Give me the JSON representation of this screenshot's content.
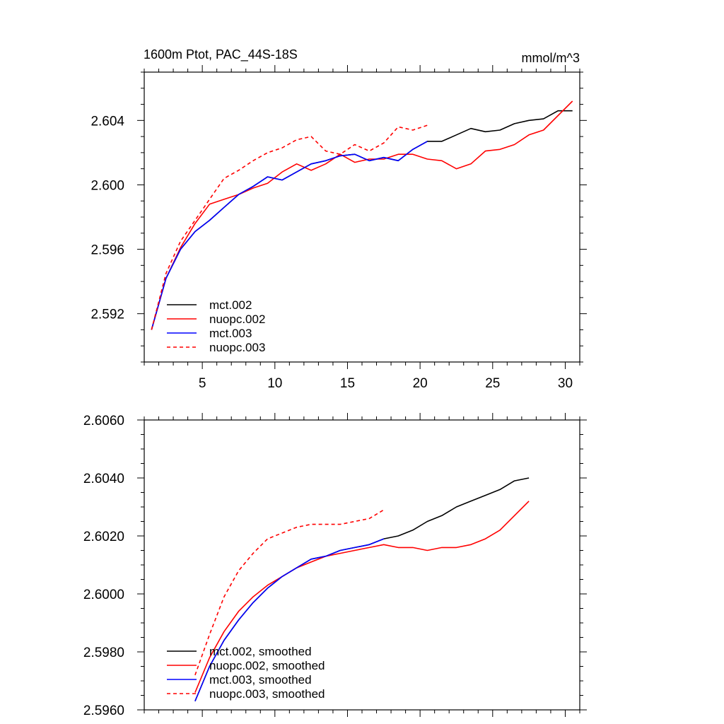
{
  "chart_data": [
    {
      "type": "line",
      "title": "1600m Ptot, PAC_44S-18S",
      "units": "mmol/m^3",
      "xlim": [
        1,
        31
      ],
      "ylim": [
        2.589,
        2.607
      ],
      "xticks": [
        5,
        10,
        15,
        20,
        25,
        30
      ],
      "xtick_labels": [
        "5",
        "10",
        "15",
        "20",
        "25",
        "30"
      ],
      "yticks": [
        2.592,
        2.596,
        2.6,
        2.604
      ],
      "ytick_labels": [
        "2.592",
        "2.596",
        "2.600",
        "2.604"
      ],
      "legend_position": "bottom-left",
      "series": [
        {
          "name": "mct.002",
          "color": "#000000",
          "dash": "solid",
          "x": [
            1.5,
            2.5,
            3.5,
            4.5,
            5.5,
            6.5,
            7.5,
            8.5,
            9.5,
            10.5,
            11.5,
            12.5,
            13.5,
            14.5,
            15.5,
            16.5,
            17.5,
            18.5,
            19.5,
            20.5,
            21.5,
            22.5,
            23.5,
            24.5,
            25.5,
            26.5,
            27.5,
            28.5,
            29.5,
            30.5
          ],
          "y": [
            2.591,
            2.5942,
            2.596,
            2.5971,
            2.5978,
            2.5986,
            2.5994,
            2.5999,
            2.6005,
            2.6003,
            2.6008,
            2.6013,
            2.6015,
            2.6018,
            2.6019,
            2.6015,
            2.6017,
            2.6015,
            2.6022,
            2.6027,
            2.6027,
            2.6031,
            2.6035,
            2.6033,
            2.6034,
            2.6038,
            2.604,
            2.6041,
            2.6046,
            2.6046
          ]
        },
        {
          "name": "nuopc.002",
          "color": "#ff0000",
          "dash": "solid",
          "x": [
            1.5,
            2.5,
            3.5,
            4.5,
            5.5,
            6.5,
            7.5,
            8.5,
            9.5,
            10.5,
            11.5,
            12.5,
            13.5,
            14.5,
            15.5,
            16.5,
            17.5,
            18.5,
            19.5,
            20.5,
            21.5,
            22.5,
            23.5,
            24.5,
            25.5,
            26.5,
            27.5,
            28.5,
            29.5,
            30.5
          ],
          "y": [
            2.591,
            2.5942,
            2.5961,
            2.5976,
            2.5988,
            2.5991,
            2.5994,
            2.5998,
            2.6001,
            2.6008,
            2.6013,
            2.6009,
            2.6013,
            2.6019,
            2.6014,
            2.6016,
            2.6016,
            2.6019,
            2.6019,
            2.6016,
            2.6015,
            2.601,
            2.6013,
            2.6021,
            2.6022,
            2.6025,
            2.6031,
            2.6034,
            2.6043,
            2.6052
          ]
        },
        {
          "name": "mct.003",
          "color": "#0000ff",
          "dash": "solid",
          "x": [
            1.5,
            2.5,
            3.5,
            4.5,
            5.5,
            6.5,
            7.5,
            8.5,
            9.5,
            10.5,
            11.5,
            12.5,
            13.5,
            14.5,
            15.5,
            16.5,
            17.5,
            18.5,
            19.5,
            20.5
          ],
          "y": [
            2.591,
            2.5942,
            2.596,
            2.5971,
            2.5978,
            2.5986,
            2.5994,
            2.5999,
            2.6005,
            2.6003,
            2.6008,
            2.6013,
            2.6015,
            2.6018,
            2.6019,
            2.6015,
            2.6017,
            2.6015,
            2.6022,
            2.6027
          ]
        },
        {
          "name": "nuopc.003",
          "color": "#ff0000",
          "dash": "dashed",
          "x": [
            1.5,
            2.5,
            3.5,
            4.5,
            5.5,
            6.5,
            7.5,
            8.5,
            9.5,
            10.5,
            11.5,
            12.5,
            13.5,
            14.5,
            15.5,
            16.5,
            17.5,
            18.5,
            19.5,
            20.5
          ],
          "y": [
            2.591,
            2.5945,
            2.5965,
            2.5978,
            2.5991,
            2.6004,
            2.6009,
            2.6015,
            2.602,
            2.6023,
            2.6028,
            2.603,
            2.6021,
            2.6019,
            2.6025,
            2.6021,
            2.6026,
            2.6036,
            2.6034,
            2.6037
          ]
        }
      ]
    },
    {
      "type": "line",
      "title": "",
      "xlim": [
        1,
        31
      ],
      "ylim": [
        2.596,
        2.606
      ],
      "xticks": [
        5,
        10,
        15,
        20,
        25,
        30
      ],
      "xtick_labels": [],
      "yticks": [
        2.596,
        2.598,
        2.6,
        2.602,
        2.604,
        2.606
      ],
      "ytick_labels": [
        "2.5960",
        "2.5980",
        "2.6000",
        "2.6020",
        "2.6040",
        "2.6060"
      ],
      "legend_position": "bottom-left",
      "series": [
        {
          "name": "mct.002, smoothed",
          "color": "#000000",
          "dash": "solid",
          "x": [
            4.5,
            5.5,
            6.5,
            7.5,
            8.5,
            9.5,
            10.5,
            11.5,
            12.5,
            13.5,
            14.5,
            15.5,
            16.5,
            17.5,
            18.5,
            19.5,
            20.5,
            21.5,
            22.5,
            23.5,
            24.5,
            25.5,
            26.5,
            27.5
          ],
          "y": [
            2.5963,
            2.5975,
            2.5984,
            2.5991,
            2.5997,
            2.6002,
            2.6006,
            2.6009,
            2.6012,
            2.6013,
            2.6015,
            2.6016,
            2.6017,
            2.6019,
            2.602,
            2.6022,
            2.6025,
            2.6027,
            2.603,
            2.6032,
            2.6034,
            2.6036,
            2.6039,
            2.604
          ]
        },
        {
          "name": "nuopc.002, smoothed",
          "color": "#ff0000",
          "dash": "solid",
          "x": [
            4.5,
            5.5,
            6.5,
            7.5,
            8.5,
            9.5,
            10.5,
            11.5,
            12.5,
            13.5,
            14.5,
            15.5,
            16.5,
            17.5,
            18.5,
            19.5,
            20.5,
            21.5,
            22.5,
            23.5,
            24.5,
            25.5,
            26.5,
            27.5
          ],
          "y": [
            2.5966,
            2.5978,
            2.5987,
            2.5994,
            2.5999,
            2.6003,
            2.6006,
            2.6009,
            2.6011,
            2.6013,
            2.6014,
            2.6015,
            2.6016,
            2.6017,
            2.6016,
            2.6016,
            2.6015,
            2.6016,
            2.6016,
            2.6017,
            2.6019,
            2.6022,
            2.6027,
            2.6032
          ]
        },
        {
          "name": "mct.003, smoothed",
          "color": "#0000ff",
          "dash": "solid",
          "x": [
            4.5,
            5.5,
            6.5,
            7.5,
            8.5,
            9.5,
            10.5,
            11.5,
            12.5,
            13.5,
            14.5,
            15.5,
            16.5,
            17.5
          ],
          "y": [
            2.5963,
            2.5975,
            2.5984,
            2.5991,
            2.5997,
            2.6002,
            2.6006,
            2.6009,
            2.6012,
            2.6013,
            2.6015,
            2.6016,
            2.6017,
            2.6019
          ]
        },
        {
          "name": "nuopc.003, smoothed",
          "color": "#ff0000",
          "dash": "dashed",
          "x": [
            4.5,
            5.5,
            6.5,
            7.5,
            8.5,
            9.5,
            10.5,
            11.5,
            12.5,
            13.5,
            14.5,
            15.5,
            16.5,
            17.5
          ],
          "y": [
            2.5972,
            2.5986,
            2.5999,
            2.6008,
            2.6014,
            2.6019,
            2.6021,
            2.6023,
            2.6024,
            2.6024,
            2.6024,
            2.6025,
            2.6026,
            2.6029
          ]
        }
      ]
    }
  ]
}
